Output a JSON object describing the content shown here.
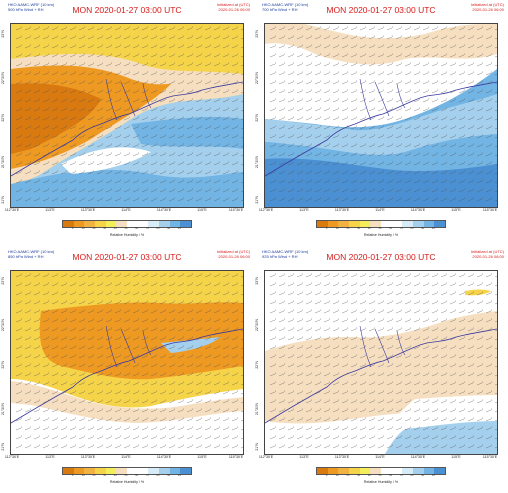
{
  "colorbar": {
    "label": "Relative Humidity / %",
    "ticks": [
      "0",
      "10",
      "20",
      "30",
      "40",
      "50",
      "60",
      "70",
      "80",
      "90",
      "95"
    ],
    "colors": [
      "#d97a10",
      "#ee9a22",
      "#f2b240",
      "#f6d44a",
      "#f4ee5a",
      "#f6dfc0",
      "#ffffff",
      "#ffffff",
      "#d8ecf8",
      "#a4d0ee",
      "#72b4e4",
      "#4a90d2"
    ]
  },
  "axes": {
    "lat_labels": [
      "23°N",
      "22°30'N",
      "22°N",
      "21°30'N",
      "21°N"
    ],
    "lon_labels": [
      "112°30'E",
      "113°E",
      "113°30'E",
      "114°E",
      "114°30'E",
      "115°E",
      "115°30'E"
    ]
  },
  "panels": [
    {
      "id": "500",
      "model": "HKO AAMC-WRF (10 km)",
      "level": "500 hPa Wind + RH",
      "title": "MON 2020-01-27 03:00 UTC",
      "init_label": "Initialized at (UTC)",
      "init_time": "2020-01-26 06:00"
    },
    {
      "id": "700",
      "model": "HKO AAMC-WRF (10 km)",
      "level": "700 hPa Wind + RH",
      "title": "MON 2020-01-27 03:00 UTC",
      "init_label": "Initialized at (UTC)",
      "init_time": "2020-01-26 06:00"
    },
    {
      "id": "850",
      "model": "HKO AAMC-WRF (10 km)",
      "level": "850 hPa Wind + RH",
      "title": "MON 2020-01-27 03:00 UTC",
      "init_label": "Initialized at (UTC)",
      "init_time": "2020-01-26 06:00"
    },
    {
      "id": "925",
      "model": "HKO AAMC-WRF (10 km)",
      "level": "925 hPa Wind + RH",
      "title": "MON 2020-01-27 03:00 UTC",
      "init_label": "Initialized at (UTC)",
      "init_time": "2020-01-26 06:00"
    }
  ]
}
